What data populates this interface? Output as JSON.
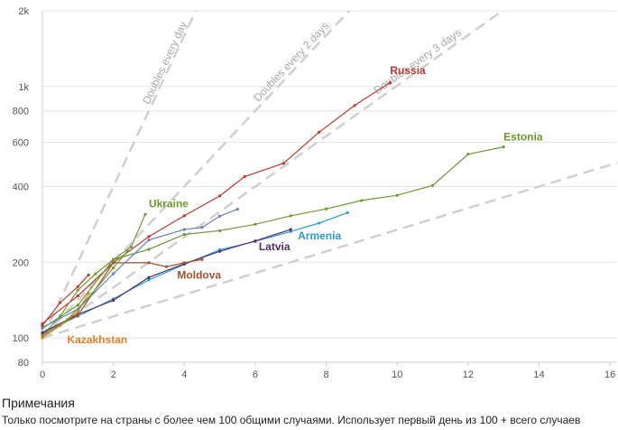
{
  "chart_data": {
    "type": "line",
    "xlim": [
      0,
      16.2
    ],
    "ylim": [
      80,
      2000
    ],
    "y_scale": "log",
    "x_ticks": [
      0,
      2,
      4,
      6,
      8,
      10,
      12,
      14,
      16
    ],
    "x_tick_labels": [
      "0",
      "2",
      "4",
      "6",
      "8",
      "10",
      "12",
      "14",
      "16"
    ],
    "y_ticks": [
      80,
      100,
      200,
      400,
      600,
      800,
      1000,
      2000
    ],
    "y_tick_labels": [
      "80",
      "100",
      "200",
      "400",
      "600",
      "800",
      "1k",
      "2k"
    ],
    "reference_lines": [
      {
        "label": "Doubles every day",
        "doubling_days": 1
      },
      {
        "label": "Doubles every 2 days",
        "doubling_days": 2
      },
      {
        "label": "Doubles every 3 days",
        "doubling_days": 3
      },
      {
        "label": "",
        "doubling_days": 7
      }
    ],
    "series": [
      {
        "name": "Russia",
        "color": "#c0392b",
        "label_at": [
          9.8,
          1120
        ],
        "points": [
          [
            0,
            114
          ],
          [
            1,
            147
          ],
          [
            2,
            199
          ],
          [
            3,
            253
          ],
          [
            4,
            306
          ],
          [
            5,
            367
          ],
          [
            5.7,
            438
          ],
          [
            6.8,
            495
          ],
          [
            7.8,
            658
          ],
          [
            8.8,
            840
          ],
          [
            9.8,
            1036
          ]
        ]
      },
      {
        "name": "Estonia",
        "color": "#6b9a2e",
        "label_at": [
          13,
          610
        ],
        "points": [
          [
            0,
            109
          ],
          [
            1,
            135
          ],
          [
            2,
            205
          ],
          [
            3,
            225
          ],
          [
            4,
            258
          ],
          [
            5,
            267
          ],
          [
            6,
            283
          ],
          [
            7,
            306
          ],
          [
            8,
            326
          ],
          [
            9,
            352
          ],
          [
            10,
            369
          ],
          [
            11,
            404
          ],
          [
            12,
            538
          ],
          [
            13,
            575
          ]
        ]
      },
      {
        "name": "Ukraine",
        "color": "#6b9a2e",
        "label_at": [
          3,
          330
        ],
        "points": [
          [
            0,
            102
          ],
          [
            0.5,
            122
          ],
          [
            1,
            155
          ],
          [
            1.5,
            180
          ],
          [
            2,
            205
          ],
          [
            2.5,
            230
          ],
          [
            2.9,
            310
          ]
        ]
      },
      {
        "name": "Armenia",
        "color": "#2b9cc9",
        "label_at": [
          7.2,
          247
        ],
        "points": [
          [
            0,
            105
          ],
          [
            1,
            122
          ],
          [
            2,
            143
          ],
          [
            3,
            170
          ],
          [
            4,
            196
          ],
          [
            5,
            224
          ],
          [
            6,
            242
          ],
          [
            7,
            265
          ],
          [
            7.8,
            286
          ],
          [
            8.6,
            315
          ]
        ]
      },
      {
        "name": "Latvia",
        "color": "#5a2a6b",
        "label_at": [
          6.1,
          223
        ],
        "points": [
          [
            0,
            105
          ],
          [
            1,
            124
          ],
          [
            2,
            141
          ],
          [
            3,
            174
          ],
          [
            4,
            197
          ],
          [
            5,
            221
          ],
          [
            6,
            243
          ],
          [
            7,
            270
          ]
        ]
      },
      {
        "name": "Moldova",
        "color": "#a0522d",
        "label_at": [
          3.8,
          172
        ],
        "points": [
          [
            0,
            103
          ],
          [
            1,
            123
          ],
          [
            2,
            199
          ],
          [
            3,
            199
          ],
          [
            3.5,
            192
          ],
          [
            4,
            199
          ],
          [
            4.5,
            205
          ]
        ]
      },
      {
        "name": "Kazakhstan",
        "color": "#e67e22",
        "label_at": [
          0.7,
          95
        ],
        "points": [
          [
            0,
            100
          ],
          [
            0.5,
            112
          ],
          [
            1,
            127
          ],
          [
            1.3,
            150
          ]
        ]
      },
      {
        "name": "",
        "color": "#6a7fb5",
        "label_at": null,
        "points": [
          [
            0,
            110
          ],
          [
            1,
            130
          ],
          [
            2,
            180
          ],
          [
            3,
            245
          ],
          [
            4,
            270
          ],
          [
            4.5,
            275
          ],
          [
            5,
            305
          ],
          [
            5.5,
            325
          ]
        ]
      },
      {
        "name": "",
        "color": "#c0392b",
        "label_at": null,
        "points": [
          [
            0,
            112
          ],
          [
            0.5,
            138
          ],
          [
            1,
            160
          ],
          [
            1.3,
            178
          ]
        ]
      },
      {
        "name": "",
        "color": "#6b9a2e",
        "label_at": null,
        "points": [
          [
            0,
            102
          ],
          [
            0.7,
            118
          ],
          [
            1.4,
            150
          ],
          [
            2,
            190
          ],
          [
            2.4,
            222
          ]
        ]
      }
    ]
  },
  "notes": {
    "title": "Примечания",
    "text": "Только посмотрите на страны с более чем 100 общими случаями. Использует первый день из 100 + всего случаев"
  }
}
